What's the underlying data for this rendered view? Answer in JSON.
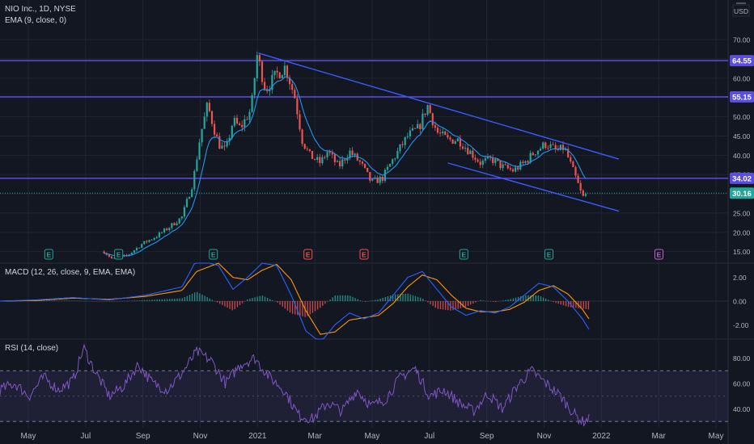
{
  "header": {
    "symbol_line": "NIO Inc., 1D, NYSE",
    "ema_line": "EMA (9, close, 0)",
    "currency": "USD"
  },
  "chart_data": [
    {
      "type": "candlestick",
      "title": "NIO Inc., 1D, NYSE",
      "ylim": [
        12,
        74
      ],
      "y_ticks": [
        "70.00",
        "65.00",
        "60.00",
        "55.00",
        "50.00",
        "45.00",
        "40.00",
        "35.00",
        "30.00",
        "25.00",
        "20.00",
        "15.00"
      ],
      "x_ticks": [
        "May",
        "Jul",
        "Sep",
        "Nov",
        "2021",
        "Mar",
        "May",
        "Jul",
        "Sep",
        "Nov",
        "2022",
        "Mar",
        "May"
      ],
      "price_points": [
        {
          "t": 0.143,
          "v": 15
        },
        {
          "t": 0.155,
          "v": 13
        },
        {
          "t": 0.175,
          "v": 14
        },
        {
          "t": 0.195,
          "v": 17
        },
        {
          "t": 0.215,
          "v": 19
        },
        {
          "t": 0.23,
          "v": 21
        },
        {
          "t": 0.25,
          "v": 24
        },
        {
          "t": 0.265,
          "v": 33
        },
        {
          "t": 0.275,
          "v": 45
        },
        {
          "t": 0.285,
          "v": 53
        },
        {
          "t": 0.3,
          "v": 43
        },
        {
          "t": 0.31,
          "v": 41
        },
        {
          "t": 0.32,
          "v": 49
        },
        {
          "t": 0.33,
          "v": 47
        },
        {
          "t": 0.345,
          "v": 52
        },
        {
          "t": 0.353,
          "v": 66
        },
        {
          "t": 0.365,
          "v": 57
        },
        {
          "t": 0.38,
          "v": 61
        },
        {
          "t": 0.392,
          "v": 63
        },
        {
          "t": 0.405,
          "v": 55
        },
        {
          "t": 0.415,
          "v": 44
        },
        {
          "t": 0.425,
          "v": 40
        },
        {
          "t": 0.44,
          "v": 38
        },
        {
          "t": 0.45,
          "v": 41
        },
        {
          "t": 0.465,
          "v": 37
        },
        {
          "t": 0.48,
          "v": 41
        },
        {
          "t": 0.495,
          "v": 38
        },
        {
          "t": 0.51,
          "v": 33
        },
        {
          "t": 0.525,
          "v": 34
        },
        {
          "t": 0.54,
          "v": 39
        },
        {
          "t": 0.56,
          "v": 45
        },
        {
          "t": 0.575,
          "v": 47
        },
        {
          "t": 0.587,
          "v": 53
        },
        {
          "t": 0.6,
          "v": 46
        },
        {
          "t": 0.615,
          "v": 44
        },
        {
          "t": 0.63,
          "v": 44
        },
        {
          "t": 0.645,
          "v": 41
        },
        {
          "t": 0.66,
          "v": 38
        },
        {
          "t": 0.675,
          "v": 39
        },
        {
          "t": 0.69,
          "v": 37
        },
        {
          "t": 0.705,
          "v": 36
        },
        {
          "t": 0.72,
          "v": 38
        },
        {
          "t": 0.735,
          "v": 41
        },
        {
          "t": 0.75,
          "v": 43
        },
        {
          "t": 0.765,
          "v": 41
        },
        {
          "t": 0.775,
          "v": 42
        },
        {
          "t": 0.785,
          "v": 37
        },
        {
          "t": 0.793,
          "v": 33
        },
        {
          "t": 0.8,
          "v": 29
        },
        {
          "t": 0.806,
          "v": 30
        }
      ],
      "horizontal_levels": [
        {
          "value": 64.55,
          "label": "64.55",
          "color": "#5b4de0"
        },
        {
          "value": 55.15,
          "label": "55.15",
          "color": "#5b4de0"
        },
        {
          "value": 34.02,
          "label": "34.02",
          "color": "#5b4de0"
        }
      ],
      "last_price": {
        "value": 30.16,
        "label": "30.16",
        "color": "#26a69a"
      },
      "trendlines": [
        {
          "name": "",
          "t0": 0.355,
          "v0": 66.5,
          "t1": 0.85,
          "v1": 39.0,
          "color": "#3d5afe"
        },
        {
          "name": "",
          "t0": 0.615,
          "v0": 38.0,
          "t1": 0.85,
          "v1": 25.5,
          "color": "#3d5afe"
        }
      ],
      "earnings_markers": [
        {
          "t": 0.067,
          "label": "E",
          "kind": "green"
        },
        {
          "t": 0.163,
          "label": "E",
          "kind": "green"
        },
        {
          "t": 0.293,
          "label": "E",
          "kind": "green"
        },
        {
          "t": 0.423,
          "label": "E",
          "kind": "red"
        },
        {
          "t": 0.5,
          "label": "E",
          "kind": "red"
        },
        {
          "t": 0.637,
          "label": "E",
          "kind": "green"
        },
        {
          "t": 0.754,
          "label": "E",
          "kind": "green"
        },
        {
          "t": 0.905,
          "label": "E",
          "kind": "purple"
        }
      ],
      "colors": {
        "up": "#26a69a",
        "down": "#ef5350",
        "ema": "#2196f3",
        "grid": "#1f2430"
      }
    },
    {
      "type": "line",
      "title": "MACD (12, 26, close, 9, EMA, EMA)",
      "ylim": [
        -3.2,
        3.2
      ],
      "y_ticks": [
        "2.00",
        "0.00",
        "-2.00"
      ],
      "macd_points": [
        {
          "t": 0.0,
          "v": 0.0
        },
        {
          "t": 0.05,
          "v": 0.1
        },
        {
          "t": 0.1,
          "v": 0.3
        },
        {
          "t": 0.15,
          "v": 0.1
        },
        {
          "t": 0.2,
          "v": 0.5
        },
        {
          "t": 0.25,
          "v": 1.2
        },
        {
          "t": 0.27,
          "v": 3.5
        },
        {
          "t": 0.3,
          "v": 3.0
        },
        {
          "t": 0.32,
          "v": 1.0
        },
        {
          "t": 0.34,
          "v": 2.0
        },
        {
          "t": 0.36,
          "v": 3.2
        },
        {
          "t": 0.38,
          "v": 3.0
        },
        {
          "t": 0.4,
          "v": 0.5
        },
        {
          "t": 0.42,
          "v": -2.5
        },
        {
          "t": 0.44,
          "v": -3.5
        },
        {
          "t": 0.46,
          "v": -2.0
        },
        {
          "t": 0.48,
          "v": -1.0
        },
        {
          "t": 0.5,
          "v": -1.5
        },
        {
          "t": 0.52,
          "v": -1.0
        },
        {
          "t": 0.54,
          "v": 0.5
        },
        {
          "t": 0.56,
          "v": 2.0
        },
        {
          "t": 0.58,
          "v": 2.5
        },
        {
          "t": 0.6,
          "v": 1.0
        },
        {
          "t": 0.62,
          "v": -0.5
        },
        {
          "t": 0.64,
          "v": -1.2
        },
        {
          "t": 0.66,
          "v": -0.8
        },
        {
          "t": 0.68,
          "v": -1.0
        },
        {
          "t": 0.7,
          "v": -0.5
        },
        {
          "t": 0.72,
          "v": 0.5
        },
        {
          "t": 0.74,
          "v": 1.5
        },
        {
          "t": 0.76,
          "v": 1.2
        },
        {
          "t": 0.78,
          "v": 0.0
        },
        {
          "t": 0.8,
          "v": -1.5
        },
        {
          "t": 0.81,
          "v": -2.5
        }
      ],
      "signal_points": [
        {
          "t": 0.0,
          "v": 0.0
        },
        {
          "t": 0.05,
          "v": 0.05
        },
        {
          "t": 0.1,
          "v": 0.25
        },
        {
          "t": 0.15,
          "v": 0.15
        },
        {
          "t": 0.2,
          "v": 0.4
        },
        {
          "t": 0.25,
          "v": 0.9
        },
        {
          "t": 0.27,
          "v": 2.5
        },
        {
          "t": 0.3,
          "v": 3.2
        },
        {
          "t": 0.32,
          "v": 2.0
        },
        {
          "t": 0.34,
          "v": 1.8
        },
        {
          "t": 0.36,
          "v": 2.6
        },
        {
          "t": 0.38,
          "v": 3.1
        },
        {
          "t": 0.4,
          "v": 1.8
        },
        {
          "t": 0.42,
          "v": -0.8
        },
        {
          "t": 0.44,
          "v": -2.8
        },
        {
          "t": 0.46,
          "v": -2.6
        },
        {
          "t": 0.48,
          "v": -1.6
        },
        {
          "t": 0.5,
          "v": -1.4
        },
        {
          "t": 0.52,
          "v": -1.2
        },
        {
          "t": 0.54,
          "v": -0.2
        },
        {
          "t": 0.56,
          "v": 1.2
        },
        {
          "t": 0.58,
          "v": 2.2
        },
        {
          "t": 0.6,
          "v": 1.8
        },
        {
          "t": 0.62,
          "v": 0.5
        },
        {
          "t": 0.64,
          "v": -0.6
        },
        {
          "t": 0.66,
          "v": -0.9
        },
        {
          "t": 0.68,
          "v": -0.9
        },
        {
          "t": 0.7,
          "v": -0.7
        },
        {
          "t": 0.72,
          "v": -0.1
        },
        {
          "t": 0.74,
          "v": 0.9
        },
        {
          "t": 0.76,
          "v": 1.3
        },
        {
          "t": 0.78,
          "v": 0.6
        },
        {
          "t": 0.8,
          "v": -0.7
        },
        {
          "t": 0.81,
          "v": -1.6
        }
      ],
      "colors": {
        "macd": "#2962ff",
        "signal": "#ff9800",
        "hist_up": "#26a69a",
        "hist_down": "#ef5350"
      }
    },
    {
      "type": "line",
      "title": "RSI (14, close)",
      "ylim": [
        25,
        95
      ],
      "y_ticks": [
        "80.00",
        "60.00",
        "40.00"
      ],
      "band": [
        30,
        70
      ],
      "rsi_points": [
        {
          "t": 0.0,
          "v": 55
        },
        {
          "t": 0.02,
          "v": 60
        },
        {
          "t": 0.04,
          "v": 50
        },
        {
          "t": 0.06,
          "v": 65
        },
        {
          "t": 0.08,
          "v": 55
        },
        {
          "t": 0.1,
          "v": 62
        },
        {
          "t": 0.115,
          "v": 88
        },
        {
          "t": 0.13,
          "v": 70
        },
        {
          "t": 0.15,
          "v": 50
        },
        {
          "t": 0.17,
          "v": 58
        },
        {
          "t": 0.19,
          "v": 75
        },
        {
          "t": 0.21,
          "v": 60
        },
        {
          "t": 0.23,
          "v": 55
        },
        {
          "t": 0.25,
          "v": 68
        },
        {
          "t": 0.27,
          "v": 85
        },
        {
          "t": 0.29,
          "v": 78
        },
        {
          "t": 0.31,
          "v": 60
        },
        {
          "t": 0.33,
          "v": 75
        },
        {
          "t": 0.35,
          "v": 80
        },
        {
          "t": 0.37,
          "v": 65
        },
        {
          "t": 0.39,
          "v": 55
        },
        {
          "t": 0.41,
          "v": 35
        },
        {
          "t": 0.43,
          "v": 32
        },
        {
          "t": 0.45,
          "v": 45
        },
        {
          "t": 0.47,
          "v": 38
        },
        {
          "t": 0.49,
          "v": 55
        },
        {
          "t": 0.51,
          "v": 42
        },
        {
          "t": 0.53,
          "v": 48
        },
        {
          "t": 0.55,
          "v": 65
        },
        {
          "t": 0.57,
          "v": 72
        },
        {
          "t": 0.59,
          "v": 50
        },
        {
          "t": 0.61,
          "v": 55
        },
        {
          "t": 0.63,
          "v": 45
        },
        {
          "t": 0.65,
          "v": 38
        },
        {
          "t": 0.67,
          "v": 52
        },
        {
          "t": 0.69,
          "v": 40
        },
        {
          "t": 0.71,
          "v": 58
        },
        {
          "t": 0.73,
          "v": 70
        },
        {
          "t": 0.75,
          "v": 60
        },
        {
          "t": 0.77,
          "v": 50
        },
        {
          "t": 0.79,
          "v": 35
        },
        {
          "t": 0.8,
          "v": 30
        },
        {
          "t": 0.81,
          "v": 32
        }
      ],
      "colors": {
        "line": "#7e57c2",
        "band_fill": "#7e57c21a",
        "band_line": "#787b86"
      }
    }
  ]
}
